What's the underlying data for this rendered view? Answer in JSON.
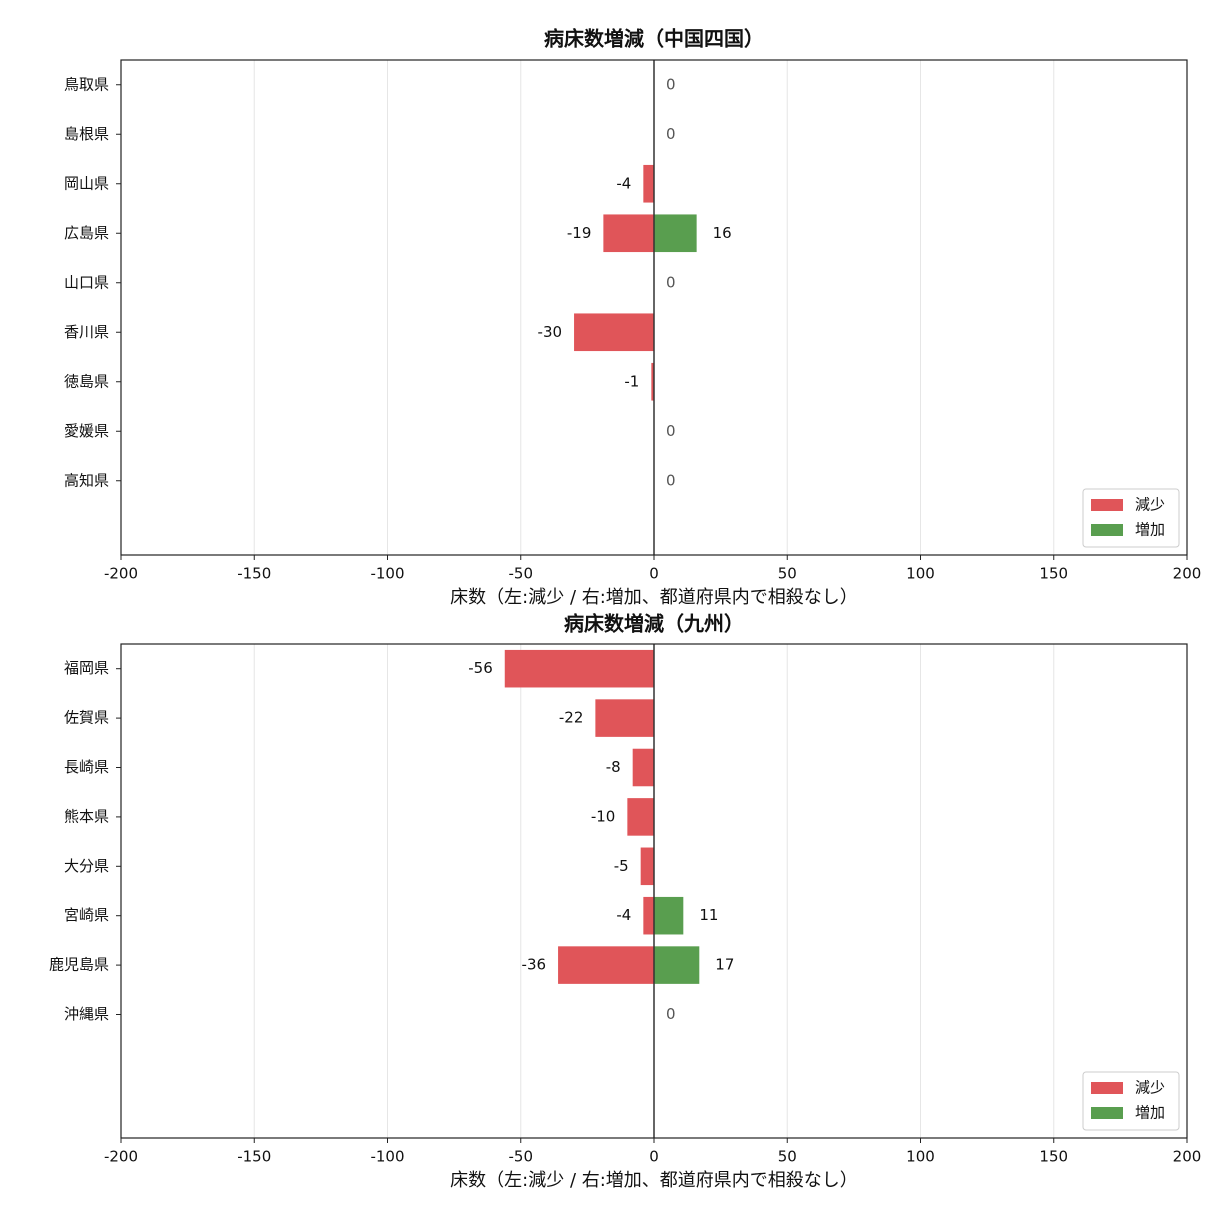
{
  "chart_data": [
    {
      "type": "barh",
      "title": "病床数増減（中国四国）",
      "xlabel": "床数（左:減少 / 右:増加、都道府県内で相殺なし）",
      "categories": [
        "鳥取県",
        "島根県",
        "岡山県",
        "広島県",
        "山口県",
        "香川県",
        "徳島県",
        "愛媛県",
        "高知県"
      ],
      "series": [
        {
          "name": "減少",
          "color": "#e05559",
          "values": [
            0,
            0,
            -4,
            -19,
            0,
            -30,
            -1,
            0,
            0
          ]
        },
        {
          "name": "増加",
          "color": "#599e4f",
          "values": [
            0,
            0,
            0,
            16,
            0,
            0,
            0,
            0,
            0
          ]
        }
      ],
      "xlim": [
        -200,
        200
      ],
      "xticks": [
        -200,
        -150,
        -100,
        -50,
        0,
        50,
        100,
        150,
        200
      ],
      "grid": true,
      "legend": "lower right"
    },
    {
      "type": "barh",
      "title": "病床数増減（九州）",
      "xlabel": "床数（左:減少 / 右:増加、都道府県内で相殺なし）",
      "categories": [
        "福岡県",
        "佐賀県",
        "長崎県",
        "熊本県",
        "大分県",
        "宮崎県",
        "鹿児島県",
        "沖縄県"
      ],
      "series": [
        {
          "name": "減少",
          "color": "#e05559",
          "values": [
            -56,
            -22,
            -8,
            -10,
            -5,
            -4,
            -36,
            0
          ]
        },
        {
          "name": "増加",
          "color": "#599e4f",
          "values": [
            0,
            0,
            0,
            0,
            0,
            11,
            17,
            0
          ]
        }
      ],
      "xlim": [
        -200,
        200
      ],
      "xticks": [
        -200,
        -150,
        -100,
        -50,
        0,
        50,
        100,
        150,
        200
      ],
      "grid": true,
      "legend": "lower right"
    }
  ]
}
